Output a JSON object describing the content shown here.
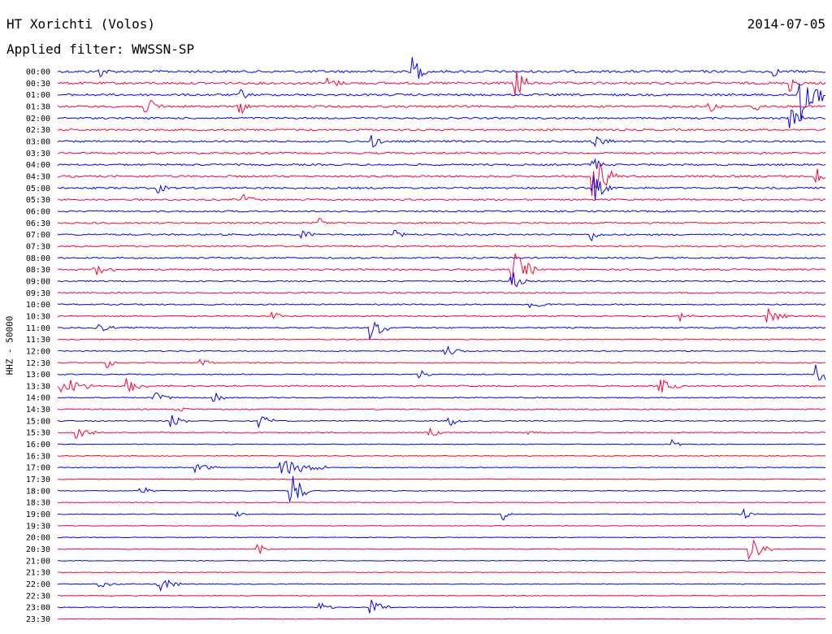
{
  "header": {
    "station": "HT Xorichti (Volos)",
    "filter": "Applied filter: WWSSN-SP",
    "date": "2014-07-05"
  },
  "y_axis_label": "HHZ - 50000",
  "colors": {
    "even_trace": "#0000ff",
    "odd_trace": "#ff0033",
    "background": "#ffffff"
  },
  "chart_data": {
    "type": "line",
    "title": "HT Xorichti (Volos)",
    "subtitle": "Applied filter: WWSSN-SP",
    "date": "2014-07-05",
    "ylabel": "HHZ - 50000",
    "trace_minutes": 30,
    "xlim_minutes": [
      0,
      30
    ],
    "grid": false,
    "rows": [
      {
        "label": "00:00",
        "noise": 0.9,
        "events": [
          [
            14.0,
            3.5,
            0.3
          ],
          [
            1.7,
            1.2,
            0.2
          ],
          [
            28.0,
            1.0,
            0.2
          ]
        ]
      },
      {
        "label": "00:30",
        "noise": 0.9,
        "events": [
          [
            17.9,
            5.0,
            0.4
          ],
          [
            28.7,
            2.0,
            0.3
          ],
          [
            10.6,
            1.2,
            0.5
          ]
        ]
      },
      {
        "label": "01:00",
        "noise": 0.8,
        "events": [
          [
            29.0,
            8.0,
            0.8
          ],
          [
            7.2,
            1.2,
            0.3
          ]
        ]
      },
      {
        "label": "01:30",
        "noise": 0.8,
        "events": [
          [
            3.5,
            2.0,
            0.5
          ],
          [
            7.2,
            1.5,
            0.3
          ],
          [
            25.5,
            1.3,
            0.4
          ],
          [
            27.3,
            1.3,
            0.3
          ]
        ]
      },
      {
        "label": "02:00",
        "noise": 0.7,
        "events": [
          [
            28.7,
            2.5,
            0.3
          ]
        ]
      },
      {
        "label": "02:30",
        "noise": 0.7,
        "events": []
      },
      {
        "label": "03:00",
        "noise": 0.7,
        "events": [
          [
            21.0,
            1.6,
            0.6
          ],
          [
            12.4,
            1.4,
            0.2
          ]
        ]
      },
      {
        "label": "03:30",
        "noise": 0.7,
        "events": []
      },
      {
        "label": "04:00",
        "noise": 0.7,
        "events": [
          [
            21.0,
            1.5,
            0.3
          ]
        ]
      },
      {
        "label": "04:30",
        "noise": 0.8,
        "events": [
          [
            21.0,
            5.0,
            0.8
          ],
          [
            29.7,
            1.8,
            0.3
          ]
        ]
      },
      {
        "label": "05:00",
        "noise": 0.7,
        "events": [
          [
            21.0,
            3.0,
            0.5
          ],
          [
            4.0,
            1.3,
            0.2
          ]
        ]
      },
      {
        "label": "05:30",
        "noise": 0.6,
        "events": [
          [
            7.3,
            1.4,
            0.4
          ]
        ]
      },
      {
        "label": "06:00",
        "noise": 0.6,
        "events": []
      },
      {
        "label": "06:30",
        "noise": 0.6,
        "events": [
          [
            10.3,
            1.2,
            0.2
          ]
        ]
      },
      {
        "label": "07:00",
        "noise": 0.6,
        "events": [
          [
            9.6,
            1.5,
            0.3
          ],
          [
            13.2,
            1.4,
            0.3
          ],
          [
            20.9,
            1.4,
            0.3
          ]
        ]
      },
      {
        "label": "07:30",
        "noise": 0.6,
        "events": []
      },
      {
        "label": "08:00",
        "noise": 0.6,
        "events": []
      },
      {
        "label": "08:30",
        "noise": 0.6,
        "events": [
          [
            17.8,
            4.5,
            0.8
          ],
          [
            1.5,
            1.3,
            0.6
          ]
        ]
      },
      {
        "label": "09:00",
        "noise": 0.5,
        "events": [
          [
            17.8,
            2.2,
            0.4
          ]
        ]
      },
      {
        "label": "09:30",
        "noise": 0.5,
        "events": []
      },
      {
        "label": "10:00",
        "noise": 0.5,
        "events": [
          [
            18.5,
            1.3,
            0.6
          ]
        ]
      },
      {
        "label": "10:30",
        "noise": 0.5,
        "events": [
          [
            27.8,
            1.7,
            0.6
          ],
          [
            24.4,
            1.2,
            0.3
          ],
          [
            8.5,
            1.0,
            0.2
          ]
        ]
      },
      {
        "label": "11:00",
        "noise": 0.5,
        "events": [
          [
            12.3,
            3.0,
            0.6
          ],
          [
            1.5,
            1.3,
            0.6
          ]
        ]
      },
      {
        "label": "11:30",
        "noise": 0.4,
        "events": []
      },
      {
        "label": "12:00",
        "noise": 0.4,
        "events": [
          [
            15.2,
            1.4,
            0.6
          ]
        ]
      },
      {
        "label": "12:30",
        "noise": 0.4,
        "events": [
          [
            2.0,
            1.2,
            0.3
          ],
          [
            5.7,
            1.2,
            0.3
          ]
        ]
      },
      {
        "label": "13:00",
        "noise": 0.4,
        "events": [
          [
            29.7,
            2.5,
            0.8
          ],
          [
            14.2,
            1.0,
            0.5
          ]
        ]
      },
      {
        "label": "13:30",
        "noise": 0.5,
        "events": [
          [
            0.2,
            2.5,
            1.0
          ],
          [
            2.8,
            1.8,
            0.6
          ],
          [
            23.6,
            1.8,
            0.6
          ]
        ]
      },
      {
        "label": "14:00",
        "noise": 0.4,
        "events": [
          [
            3.8,
            1.3,
            0.6
          ],
          [
            6.2,
            1.2,
            0.3
          ]
        ]
      },
      {
        "label": "14:30",
        "noise": 0.4,
        "events": [
          [
            4.7,
            1.0,
            0.3
          ]
        ]
      },
      {
        "label": "15:00",
        "noise": 0.4,
        "events": [
          [
            4.5,
            1.6,
            0.5
          ],
          [
            8.0,
            1.4,
            0.5
          ],
          [
            15.4,
            1.2,
            0.3
          ]
        ]
      },
      {
        "label": "15:30",
        "noise": 0.4,
        "events": [
          [
            0.8,
            2.0,
            0.6
          ],
          [
            14.6,
            1.3,
            0.3
          ],
          [
            18.5,
            1.0,
            0.2
          ]
        ]
      },
      {
        "label": "16:00",
        "noise": 0.3,
        "events": [
          [
            24.1,
            1.1,
            0.2
          ]
        ]
      },
      {
        "label": "16:30",
        "noise": 0.3,
        "events": []
      },
      {
        "label": "17:00",
        "noise": 0.3,
        "events": [
          [
            8.8,
            2.0,
            1.6
          ],
          [
            5.4,
            1.1,
            0.8
          ]
        ]
      },
      {
        "label": "17:30",
        "noise": 0.3,
        "events": []
      },
      {
        "label": "18:00",
        "noise": 0.3,
        "events": [
          [
            9.2,
            4.0,
            0.6
          ],
          [
            3.3,
            1.2,
            0.4
          ]
        ]
      },
      {
        "label": "18:30",
        "noise": 0.3,
        "events": []
      },
      {
        "label": "19:00",
        "noise": 0.25,
        "events": [
          [
            17.5,
            1.4,
            0.2
          ],
          [
            26.8,
            1.4,
            0.4
          ],
          [
            7.1,
            0.9,
            0.2
          ]
        ]
      },
      {
        "label": "19:30",
        "noise": 0.25,
        "events": []
      },
      {
        "label": "20:00",
        "noise": 0.25,
        "events": []
      },
      {
        "label": "20:30",
        "noise": 0.3,
        "events": [
          [
            27.1,
            3.5,
            0.7
          ],
          [
            7.9,
            1.3,
            0.2
          ]
        ]
      },
      {
        "label": "21:00",
        "noise": 0.25,
        "events": []
      },
      {
        "label": "21:30",
        "noise": 0.25,
        "events": []
      },
      {
        "label": "22:00",
        "noise": 0.3,
        "events": [
          [
            4.0,
            1.8,
            0.7
          ],
          [
            1.7,
            0.8,
            0.6
          ]
        ]
      },
      {
        "label": "22:30",
        "noise": 0.25,
        "events": []
      },
      {
        "label": "23:00",
        "noise": 0.3,
        "events": [
          [
            12.3,
            1.8,
            0.6
          ],
          [
            10.3,
            1.2,
            0.4
          ]
        ]
      },
      {
        "label": "23:30",
        "noise": 0.25,
        "events": []
      }
    ]
  }
}
